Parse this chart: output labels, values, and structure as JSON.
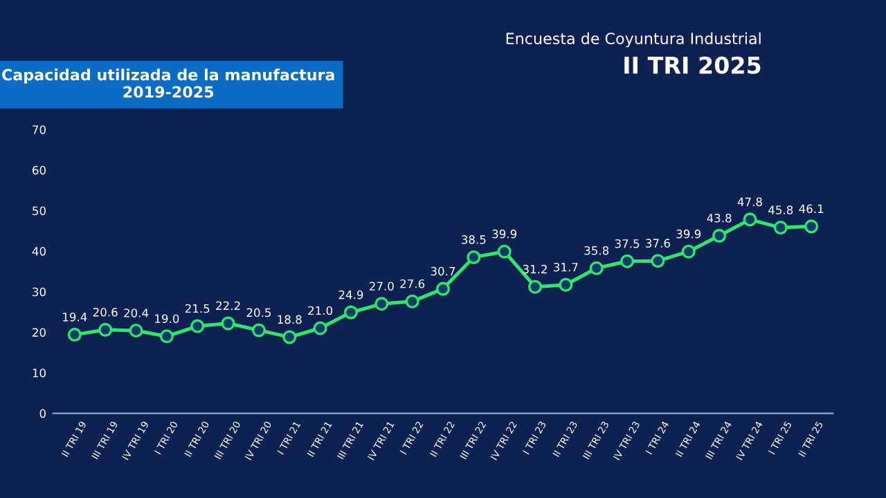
{
  "chart_data": {
    "type": "line",
    "title": "Capacidad utilizada de la manufactura\n2019-2025",
    "annotations": [
      "Encuesta de Coyuntura Industrial",
      "II TRI 2025"
    ],
    "categories": [
      "II TRI 19",
      "III TRI 19",
      "IV TRI 19",
      "I TRI 20",
      "II TRI 20",
      "III TRI 20",
      "IV TRI 20",
      "I TRI 21",
      "II TRI 21",
      "III TRI 21",
      "IV TRI 21",
      "I TRI 22",
      "II TRI 22",
      "III TRI 22",
      "IV TRI 22",
      "I TRI 23",
      "II TRI 23",
      "III TRI 23",
      "IV TRI 23",
      "I TRI 24",
      "II TRI 24",
      "III TRI 24",
      "IV TRI 24",
      "I TRI 25",
      "II TRI 25"
    ],
    "series": [
      {
        "color": "#2ee86a",
        "values": [
          19.4,
          20.6,
          20.4,
          19.0,
          21.5,
          22.2,
          20.5,
          18.8,
          21.0,
          24.9,
          27.0,
          27.6,
          30.7,
          38.5,
          39.9,
          31.2,
          31.7,
          35.8,
          37.5,
          37.6,
          39.9,
          43.8,
          47.8,
          45.8,
          46.1
        ],
        "value_labels": [
          "19.4",
          "20.6",
          "20.4",
          "19.0",
          "21.5",
          "22.2",
          "20.5",
          "18.8",
          "21.0",
          "24.9",
          "27.0",
          "27.6",
          "30.7",
          "38.5",
          "39.9",
          "31.2",
          "31.7",
          "35.8",
          "37.5",
          "37.6",
          "39.9",
          "43.8",
          "47.8",
          "45.8",
          "46.1"
        ]
      }
    ],
    "ylim": [
      0,
      70
    ],
    "yticks": [
      0,
      10,
      20,
      30,
      40,
      50,
      60,
      70
    ],
    "grid": false,
    "marker": "circle",
    "line_style": "solid"
  }
}
